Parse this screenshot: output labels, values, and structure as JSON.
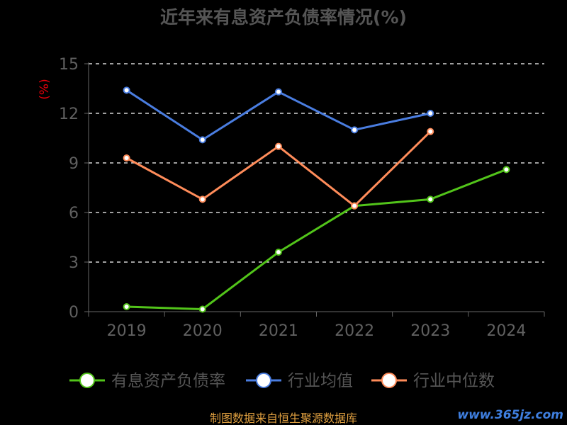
{
  "chart_data": {
    "type": "line",
    "title": "近年来有息资产负债率情况(%)",
    "ylabel": "(%)",
    "categories": [
      "2019",
      "2020",
      "2021",
      "2022",
      "2023",
      "2024"
    ],
    "ylim": [
      0,
      15
    ],
    "yticks": [
      0,
      3,
      6,
      9,
      12,
      15
    ],
    "grid": true,
    "legend_position": "bottom",
    "series": [
      {
        "name": "有息资产负债率",
        "color": "#52c41a",
        "values": [
          0.3,
          0.15,
          3.6,
          6.4,
          6.8,
          8.6
        ]
      },
      {
        "name": "行业均值",
        "color": "#4a7de0",
        "values": [
          13.4,
          10.4,
          13.3,
          11.0,
          12.0,
          null
        ]
      },
      {
        "name": "行业中位数",
        "color": "#ff8c5a",
        "values": [
          9.3,
          6.8,
          10.0,
          6.4,
          10.9,
          null
        ]
      }
    ]
  },
  "footer": {
    "source": "制图数据来自恒生聚源数据库"
  },
  "watermark": {
    "text": "www.365jz.com"
  },
  "colors": {
    "background": "#000000",
    "grid": "#ffffff",
    "axis": "#666666"
  }
}
